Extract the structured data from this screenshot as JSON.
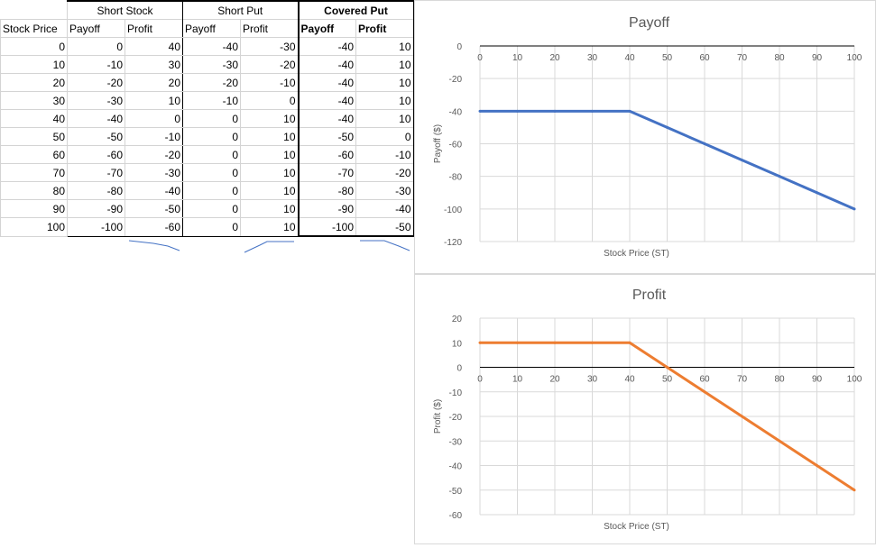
{
  "table": {
    "groups": [
      "Short Stock",
      "Short Put",
      "Covered Put"
    ],
    "columns": [
      "Stock Price",
      "Payoff",
      "Profit",
      "Payoff",
      "Profit",
      "Payoff",
      "Profit"
    ],
    "rows": [
      [
        "0",
        "0",
        "40",
        "-40",
        "-30",
        "-40",
        "10"
      ],
      [
        "10",
        "-10",
        "30",
        "-30",
        "-20",
        "-40",
        "10"
      ],
      [
        "20",
        "-20",
        "20",
        "-20",
        "-10",
        "-40",
        "10"
      ],
      [
        "30",
        "-30",
        "10",
        "-10",
        "0",
        "-40",
        "10"
      ],
      [
        "40",
        "-40",
        "0",
        "0",
        "10",
        "-40",
        "10"
      ],
      [
        "50",
        "-50",
        "-10",
        "0",
        "10",
        "-50",
        "0"
      ],
      [
        "60",
        "-60",
        "-20",
        "0",
        "10",
        "-60",
        "-10"
      ],
      [
        "70",
        "-70",
        "-30",
        "0",
        "10",
        "-70",
        "-20"
      ],
      [
        "80",
        "-80",
        "-40",
        "0",
        "10",
        "-80",
        "-30"
      ],
      [
        "90",
        "-90",
        "-50",
        "0",
        "10",
        "-90",
        "-40"
      ],
      [
        "100",
        "-100",
        "-60",
        "0",
        "10",
        "-100",
        "-50"
      ]
    ]
  },
  "chart_data": [
    {
      "type": "line",
      "title": "Payoff",
      "xlabel": "Stock Price (ST)",
      "ylabel": "Payoff ($)",
      "x": [
        0,
        10,
        20,
        30,
        40,
        50,
        60,
        70,
        80,
        90,
        100
      ],
      "series": [
        {
          "values": [
            -40,
            -40,
            -40,
            -40,
            -40,
            -50,
            -60,
            -70,
            -80,
            -90,
            -100
          ],
          "color": "#4472c4"
        }
      ],
      "xlim": [
        0,
        100
      ],
      "ylim": [
        -120,
        0
      ],
      "xticks": [
        "0",
        "10",
        "20",
        "30",
        "40",
        "50",
        "60",
        "70",
        "80",
        "90",
        "100"
      ],
      "yticks": [
        "0",
        "-20",
        "-40",
        "-60",
        "-80",
        "-100",
        "-120"
      ],
      "grid": true,
      "legend": "none"
    },
    {
      "type": "line",
      "title": "Profit",
      "xlabel": "Stock Price (ST)",
      "ylabel": "Profit ($)",
      "x": [
        0,
        10,
        20,
        30,
        40,
        50,
        60,
        70,
        80,
        90,
        100
      ],
      "series": [
        {
          "values": [
            10,
            10,
            10,
            10,
            10,
            0,
            -10,
            -20,
            -30,
            -40,
            -50
          ],
          "color": "#ed7d31"
        }
      ],
      "xlim": [
        0,
        100
      ],
      "ylim": [
        -60,
        20
      ],
      "xticks": [
        "0",
        "10",
        "20",
        "30",
        "40",
        "50",
        "60",
        "70",
        "80",
        "90",
        "100"
      ],
      "yticks": [
        "20",
        "10",
        "0",
        "-10",
        "-20",
        "-30",
        "-40",
        "-50",
        "-60"
      ],
      "grid": true,
      "legend": "none"
    }
  ]
}
